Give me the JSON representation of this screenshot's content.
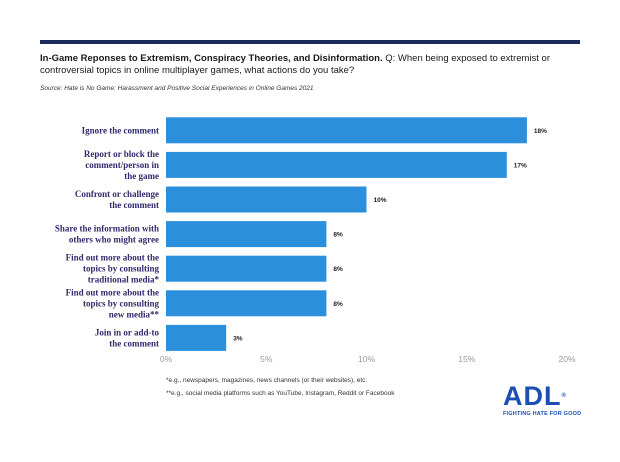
{
  "header": {
    "title_bold": "In-Game Reponses to Extremism, Conspiracy Theories, and Disinformation.",
    "title_rest": " Q: When being exposed to extremist or controversial topics in online multiplayer games, what actions do you take?",
    "source": "Source: Hate is No Game: Harassment and Positive Social Experiences in Online Games 2021"
  },
  "chart_data": {
    "type": "bar",
    "orientation": "horizontal",
    "categories": [
      [
        "Ignore the comment"
      ],
      [
        "Report or block the",
        "comment/person in",
        "the game"
      ],
      [
        "Confront or challenge",
        "the comment"
      ],
      [
        "Share the information with",
        "others who might agree"
      ],
      [
        "Find out more about the",
        "topics by consulting",
        "traditional media*"
      ],
      [
        "Find out more about the",
        "topics by consulting",
        "new media**"
      ],
      [
        "Join in or add-to",
        "the comment"
      ]
    ],
    "values": [
      18,
      17,
      10,
      8,
      8,
      8,
      3
    ],
    "value_labels": [
      "18%",
      "17%",
      "10%",
      "8%",
      "8%",
      "8%",
      "3%"
    ],
    "xlim": [
      0,
      20
    ],
    "ticks": [
      0,
      5,
      10,
      15,
      20
    ],
    "tick_labels": [
      "0%",
      "5%",
      "10%",
      "15%",
      "20%"
    ],
    "bar_color": "#2b8fdc",
    "grid": false
  },
  "footnotes": {
    "traditional": "*e.g., newspapers, magazines, news channels (or their websites), etc.",
    "new_media": "**e.g., social media platforms such as YouTube, Instagram, Reddit or Facebook"
  },
  "logo": {
    "text": "ADL",
    "reg": "®",
    "tagline": "FIGHTING HATE FOR GOOD"
  }
}
